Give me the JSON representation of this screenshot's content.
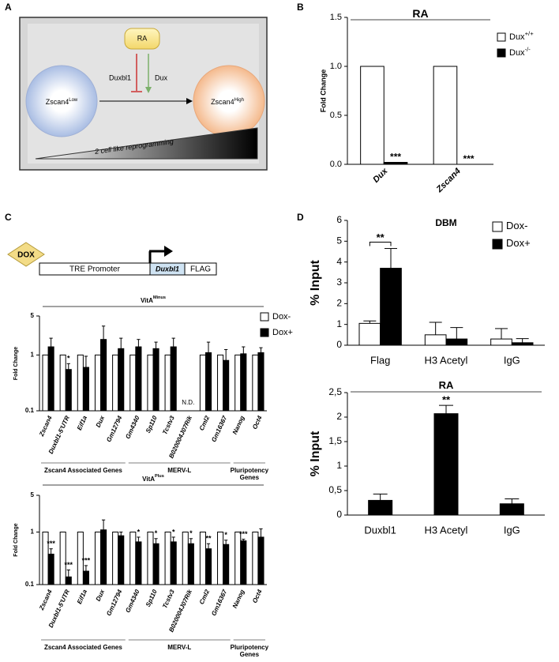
{
  "panel_labels": [
    "A",
    "B",
    "C",
    "D"
  ],
  "diagram": {
    "ra": "RA",
    "repressor": "Duxbl1",
    "activator": "Dux",
    "from": {
      "text": "Zscan4",
      "sup": "Low"
    },
    "to": {
      "text": "Zscan4",
      "sup": "High"
    },
    "gradient": "2 cell like reprogramming"
  },
  "construct": {
    "inducer": "DOX",
    "promoter": "TRE Promoter",
    "gene": "Duxbl1",
    "tag": "FLAG"
  },
  "chart_data": [
    {
      "type": "bar",
      "title": {
        "text": "RA"
      },
      "title_rule": true,
      "ylabel": "Fold Change",
      "categories": [
        "Dux",
        "Zscan4"
      ],
      "italic_categories": true,
      "series": [
        {
          "name": "Dux",
          "sup": "+/+",
          "color": "#ffffff",
          "values": [
            1,
            1
          ]
        },
        {
          "name": "Dux",
          "sup": "-/-",
          "color": "#000000",
          "values": [
            0.02,
            0
          ]
        }
      ],
      "annotations": [
        "***",
        "***"
      ],
      "bracket": false,
      "log_scale": false,
      "ylim": [
        0,
        1.5
      ],
      "yticks": [
        {
          "value": 0,
          "label": "0.0"
        },
        0.5,
        {
          "value": 1,
          "label": "1.0"
        },
        1.5
      ]
    },
    {
      "type": "bar",
      "title": {
        "text": "VitA",
        "sup": "Minus"
      },
      "title_rule": true,
      "ylabel": "Fold Change",
      "categories": [
        "Zscan4",
        "Duxbl1-5'UTR",
        "Eif1a",
        "Dux",
        "Gm12794",
        "Gm4340",
        "Sp110",
        "Tcstv3",
        "B020004J07Rik",
        "Cml2",
        "Gm16367",
        "Nanog",
        "Oct4"
      ],
      "italic_categories": true,
      "series": [
        {
          "name": "Dox-",
          "color": "#ffffff",
          "values": [
            1,
            1,
            1,
            1,
            1,
            1,
            1,
            1,
            null,
            1,
            1,
            1,
            1
          ]
        },
        {
          "name": "Dox+",
          "color": "#000000",
          "values": [
            1.4,
            0.55,
            0.6,
            1.9,
            1.3,
            1.4,
            1.3,
            1.4,
            null,
            1.1,
            0.8,
            1.05,
            1.1
          ],
          "errors": [
            0.6,
            0.15,
            0.35,
            1.4,
            0.7,
            0.5,
            0.4,
            0.6,
            null,
            0.6,
            0.45,
            0.35,
            0.25
          ]
        }
      ],
      "annotations": [
        null,
        "*",
        null,
        null,
        null,
        null,
        null,
        null,
        "N.D.",
        null,
        null,
        null,
        null
      ],
      "groups": [
        {
          "label": [
            "Zscan4 Associated Genes"
          ],
          "members": [
            "Zscan4",
            "Gm12794"
          ]
        },
        {
          "label": [
            "MERV-L"
          ],
          "members": [
            "Gm4340",
            "Gm16367"
          ]
        },
        {
          "label": [
            "Pluripotency",
            "Genes"
          ],
          "members": [
            "Nanog",
            "Oct4"
          ]
        }
      ],
      "bracket": false,
      "log_scale": true,
      "ylim": [
        0.1,
        5
      ],
      "yticks": [
        0.1,
        1,
        5
      ]
    },
    {
      "type": "bar",
      "title": {
        "text": "VitA",
        "sup": "Plus"
      },
      "title_rule": true,
      "ylabel": "Fold Change",
      "categories": [
        "Zscan4",
        "Duxbl1-5'UTR",
        "Eif1a",
        "Dux",
        "Gm12794",
        "Gm4340",
        "Sp110",
        "Tcstv3",
        "B020004J07Rik",
        "Cml2",
        "Gm16367",
        "Nanog",
        "Oct4"
      ],
      "italic_categories": true,
      "series": [
        {
          "color": "#ffffff",
          "values": [
            1,
            1,
            1,
            1,
            1,
            1,
            1,
            1,
            1,
            1,
            1,
            1,
            1
          ]
        },
        {
          "color": "#000000",
          "values": [
            0.38,
            0.14,
            0.18,
            1.1,
            0.85,
            0.65,
            0.6,
            0.65,
            0.6,
            0.48,
            0.58,
            0.68,
            0.8
          ],
          "errors": [
            0.1,
            0.05,
            0.05,
            0.6,
            0.15,
            0.15,
            0.15,
            0.15,
            0.15,
            0.12,
            0.12,
            0.05,
            0.35
          ]
        }
      ],
      "annotations": [
        "***",
        "***",
        "***",
        null,
        null,
        "*",
        "*",
        "*",
        "*",
        "**",
        "*",
        "***",
        null
      ],
      "groups": [
        {
          "label": [
            "Zscan4 Associated Genes"
          ],
          "members": [
            "Zscan4",
            "Gm12794"
          ]
        },
        {
          "label": [
            "MERV-L"
          ],
          "members": [
            "Gm4340",
            "Gm16367"
          ]
        },
        {
          "label": [
            "Pluripotency",
            "Genes"
          ],
          "members": [
            "Nanog",
            "Oct4"
          ]
        }
      ],
      "bracket": false,
      "log_scale": true,
      "ylim": [
        0.1,
        5
      ],
      "yticks": [
        0.1,
        1,
        5
      ]
    },
    {
      "type": "bar",
      "title": {
        "text": "DBM"
      },
      "title_rule": false,
      "ylabel": "% Input",
      "categories": [
        "Flag",
        "H3 Acetyl",
        "IgG"
      ],
      "italic_categories": false,
      "series": [
        {
          "name": "Dox-",
          "color": "#ffffff",
          "values": [
            1.05,
            0.5,
            0.3
          ],
          "errors": [
            0.12,
            0.6,
            0.5
          ]
        },
        {
          "name": "Dox+",
          "color": "#000000",
          "values": [
            3.7,
            0.3,
            0.12
          ],
          "errors": [
            0.95,
            0.55,
            0.2
          ]
        }
      ],
      "annotations": [
        "**",
        null,
        null
      ],
      "bracket": true,
      "log_scale": false,
      "ylim": [
        0,
        6
      ],
      "yticks": [
        0,
        1,
        2,
        3,
        4,
        5,
        6
      ]
    },
    {
      "type": "bar",
      "title": {
        "text": "RA"
      },
      "title_rule": true,
      "ylabel": "% Input",
      "categories": [
        "Duxbl1",
        "H3 Acetyl",
        "IgG"
      ],
      "italic_categories": false,
      "series": [
        {
          "color": "#000000",
          "values": [
            0.3,
            2.07,
            0.23
          ],
          "errors": [
            0.13,
            0.17,
            0.1
          ]
        }
      ],
      "annotations": [
        null,
        "**",
        null
      ],
      "bracket": false,
      "log_scale": false,
      "ylim": [
        0,
        2.5
      ],
      "yticks": [
        0,
        {
          "value": 0.5,
          "label": "0,5"
        },
        1,
        {
          "value": 1.5,
          "label": "1,5"
        },
        2,
        {
          "value": 2.5,
          "label": "2,5"
        }
      ]
    }
  ]
}
